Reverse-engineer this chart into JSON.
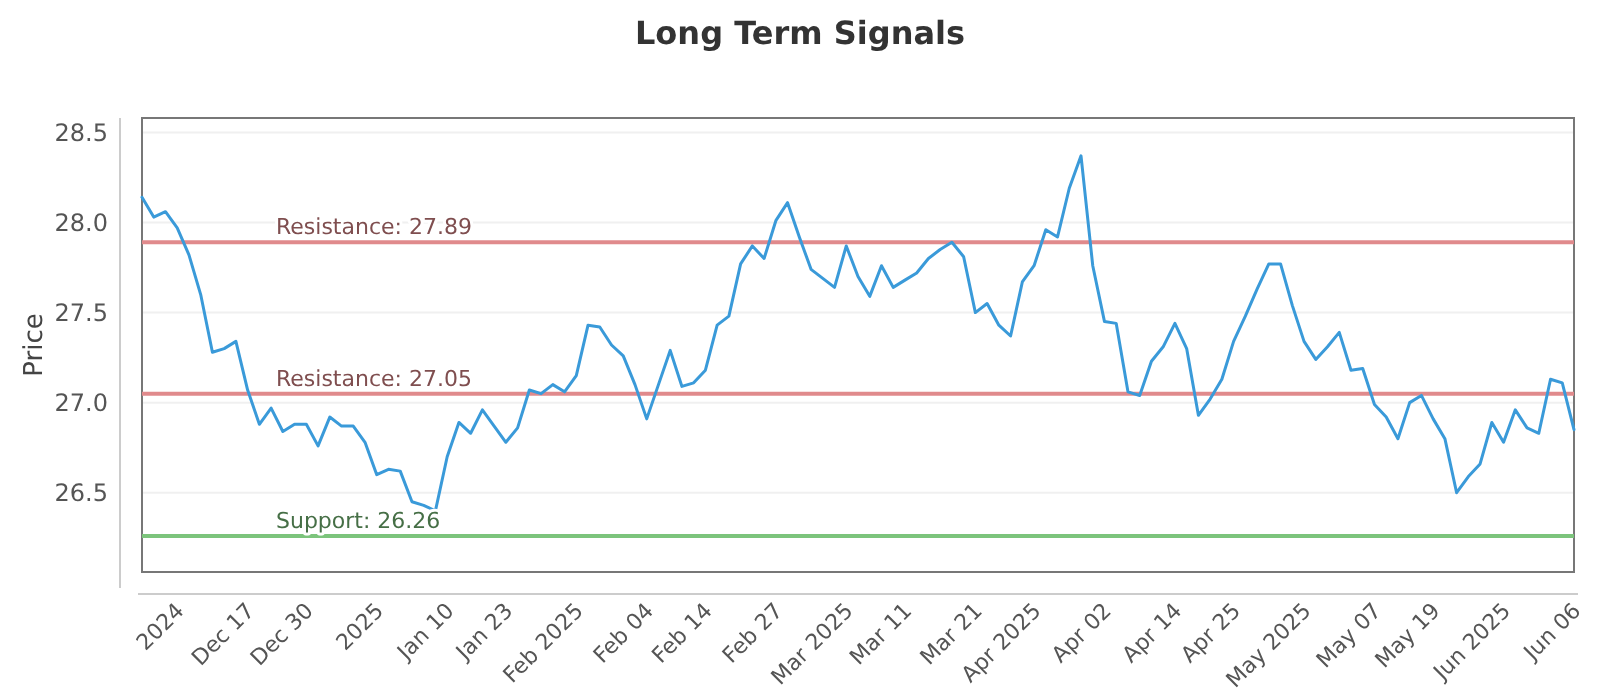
{
  "chart_data": {
    "type": "line",
    "title": "Long Term Signals",
    "ylabel": "Price",
    "categories": [
      null,
      null,
      null,
      "2024",
      null,
      null,
      null,
      null,
      null,
      "Dec 17",
      null,
      null,
      null,
      null,
      "Dec 30",
      null,
      null,
      null,
      null,
      null,
      "2025",
      null,
      null,
      null,
      null,
      null,
      "Jan 10",
      null,
      null,
      null,
      null,
      "Jan 23",
      null,
      null,
      null,
      null,
      null,
      "Feb 2025",
      null,
      null,
      null,
      null,
      null,
      "Feb 04",
      null,
      null,
      null,
      null,
      "Feb 14",
      null,
      null,
      null,
      null,
      null,
      "Feb 27",
      null,
      null,
      null,
      null,
      null,
      "Mar 2025",
      null,
      null,
      null,
      null,
      "Mar 11",
      null,
      null,
      null,
      null,
      null,
      "Mar 21",
      null,
      null,
      null,
      null,
      "Apr 2025",
      null,
      null,
      null,
      null,
      null,
      "Apr 02",
      null,
      null,
      null,
      null,
      null,
      "Apr 14",
      null,
      null,
      null,
      null,
      "Apr 25",
      null,
      null,
      null,
      null,
      null,
      "May 2025",
      null,
      null,
      null,
      null,
      null,
      "May 07",
      null,
      null,
      null,
      null,
      "May 19",
      null,
      null,
      null,
      null,
      null,
      "Jun 2025",
      null,
      null,
      null,
      null,
      null,
      "Jun 06"
    ],
    "series": [
      {
        "color": "#3a9ad9",
        "values": [
          28.14,
          28.03,
          28.06,
          27.97,
          27.82,
          27.6,
          27.28,
          27.3,
          27.34,
          27.07,
          26.88,
          26.97,
          26.84,
          26.88,
          26.88,
          26.76,
          26.92,
          26.87,
          26.87,
          26.78,
          26.6,
          26.63,
          26.62,
          26.45,
          26.43,
          26.4,
          26.7,
          26.89,
          26.83,
          26.96,
          26.87,
          26.78,
          26.86,
          27.07,
          27.05,
          27.1,
          27.06,
          27.15,
          27.43,
          27.42,
          27.32,
          27.26,
          27.1,
          26.91,
          27.1,
          27.29,
          27.09,
          27.11,
          27.18,
          27.43,
          27.48,
          27.77,
          27.87,
          27.8,
          28.01,
          28.11,
          27.92,
          27.74,
          27.69,
          27.64,
          27.87,
          27.7,
          27.59,
          27.76,
          27.64,
          27.68,
          27.72,
          27.8,
          27.85,
          27.89,
          27.81,
          27.5,
          27.55,
          27.43,
          27.37,
          27.67,
          27.76,
          27.96,
          27.92,
          28.19,
          28.37,
          27.76,
          27.45,
          27.44,
          27.06,
          27.04,
          27.23,
          27.31,
          27.44,
          27.3,
          26.93,
          27.02,
          27.13,
          27.34,
          27.48,
          27.63,
          27.77,
          27.77,
          27.54,
          27.34,
          27.24,
          27.31,
          27.39,
          27.18,
          27.19,
          26.99,
          26.92,
          26.8,
          27.0,
          27.04,
          26.91,
          26.8,
          26.5,
          26.59,
          26.66,
          26.89,
          26.78,
          26.96,
          26.86,
          26.83,
          27.13,
          27.11,
          26.85
        ]
      }
    ],
    "ylim": [
      26.06,
      28.58
    ],
    "yticks": [
      26.5,
      {
        "value": 27,
        "label": "27.0"
      },
      27.5,
      {
        "value": 28,
        "label": "28.0"
      },
      28.5
    ],
    "grid": "y",
    "ref_lines": [
      {
        "axis": "y",
        "value": 27.89,
        "label": "Resistance: 27.89",
        "color": "#e08a8c"
      },
      {
        "axis": "y",
        "value": 27.05,
        "label": "Resistance: 27.05",
        "color": "#e08a8c"
      },
      {
        "axis": "y",
        "value": 26.26,
        "label": "Support: 26.26",
        "color": "#7cc47c"
      }
    ]
  }
}
